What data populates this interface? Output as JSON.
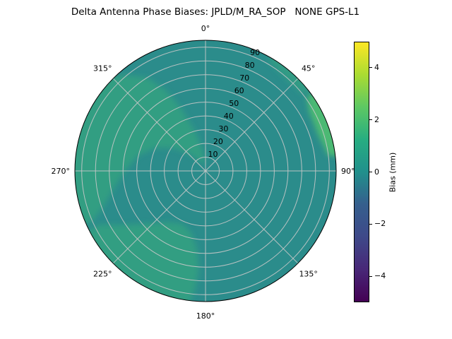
{
  "chart_data": {
    "type": "polar_heatmap",
    "title": "Delta Antenna Phase Biases: JPLD/M_RA_SOP   NONE GPS-L1",
    "angular_unit": "degrees_clockwise_from_north",
    "angular_ticks": [
      {
        "angle": 0,
        "label": "0°"
      },
      {
        "angle": 45,
        "label": "45°"
      },
      {
        "angle": 90,
        "label": "90°"
      },
      {
        "angle": 135,
        "label": "135°"
      },
      {
        "angle": 180,
        "label": "180°"
      },
      {
        "angle": 225,
        "label": "225°"
      },
      {
        "angle": 270,
        "label": "270°"
      },
      {
        "angle": 315,
        "label": "315°"
      }
    ],
    "radial_ticks": [
      10,
      20,
      30,
      40,
      50,
      60,
      70,
      80,
      90
    ],
    "radial_axis_max": 95,
    "radial_label_angle": 22.5,
    "grid_color": "#c8c8c8",
    "outline_color": "#000000",
    "colorbar": {
      "label": "Bias (mm)",
      "min": -5,
      "max": 5,
      "ticks": [
        {
          "value": 4,
          "label": "4"
        },
        {
          "value": 2,
          "label": "2"
        },
        {
          "value": 0,
          "label": "0"
        },
        {
          "value": -2,
          "label": "−2"
        },
        {
          "value": -4,
          "label": "−4"
        }
      ]
    },
    "colormap": {
      "name": "viridis",
      "stops": [
        {
          "pos": 0,
          "color": "#440154"
        },
        {
          "pos": 0.125,
          "color": "#482878"
        },
        {
          "pos": 0.25,
          "color": "#3e4989"
        },
        {
          "pos": 0.375,
          "color": "#355f8d"
        },
        {
          "pos": 0.5,
          "color": "#21908c"
        },
        {
          "pos": 0.625,
          "color": "#27ad81"
        },
        {
          "pos": 0.75,
          "color": "#5dc863"
        },
        {
          "pos": 0.875,
          "color": "#aadc32"
        },
        {
          "pos": 1,
          "color": "#fde725"
        }
      ]
    },
    "field": {
      "background": {
        "bias_mm": 0.1,
        "color": "#2b8c8b"
      },
      "regions": [
        {
          "name": "northwest-band",
          "bias_mm": 1.2,
          "color": "#319e82",
          "points": [
            [
              246,
              95
            ],
            [
              262,
              95
            ],
            [
              278,
              95
            ],
            [
              295,
              95
            ],
            [
              310,
              95
            ],
            [
              320,
              91
            ],
            [
              328,
              80
            ],
            [
              334,
              65
            ],
            [
              339,
              48
            ],
            [
              345,
              30
            ],
            [
              352,
              16
            ],
            [
              357,
              8
            ],
            [
              345,
              5
            ],
            [
              330,
              8
            ],
            [
              318,
              16
            ],
            [
              306,
              28
            ],
            [
              295,
              40
            ],
            [
              283,
              50
            ],
            [
              271,
              58
            ],
            [
              259,
              68
            ],
            [
              250,
              80
            ],
            [
              246,
              90
            ]
          ]
        },
        {
          "name": "southwest-blob",
          "bias_mm": 1.2,
          "color": "#319e82",
          "points": [
            [
              188,
              95
            ],
            [
              202,
              95
            ],
            [
              216,
              95
            ],
            [
              230,
              95
            ],
            [
              243,
              95
            ],
            [
              243,
              86
            ],
            [
              236,
              70
            ],
            [
              227,
              56
            ],
            [
              216,
              46
            ],
            [
              204,
              42
            ],
            [
              193,
              46
            ],
            [
              186,
              58
            ],
            [
              184,
              72
            ],
            [
              185,
              86
            ]
          ]
        },
        {
          "name": "northeast-rim-band",
          "bias_mm": 1.0,
          "color": "#319b84",
          "points": [
            [
              28,
              95
            ],
            [
              40,
              95
            ],
            [
              52,
              95
            ],
            [
              52,
              90
            ],
            [
              40,
              89
            ],
            [
              30,
              92
            ]
          ]
        },
        {
          "name": "east-rim-sliver",
          "bias_mm": 2.3,
          "color": "#4bb973",
          "points": [
            [
              54,
              95
            ],
            [
              64,
              95
            ],
            [
              75,
              95
            ],
            [
              84,
              95
            ],
            [
              83,
              90
            ],
            [
              72,
              86
            ],
            [
              60,
              87
            ],
            [
              54,
              91
            ]
          ]
        }
      ]
    }
  }
}
